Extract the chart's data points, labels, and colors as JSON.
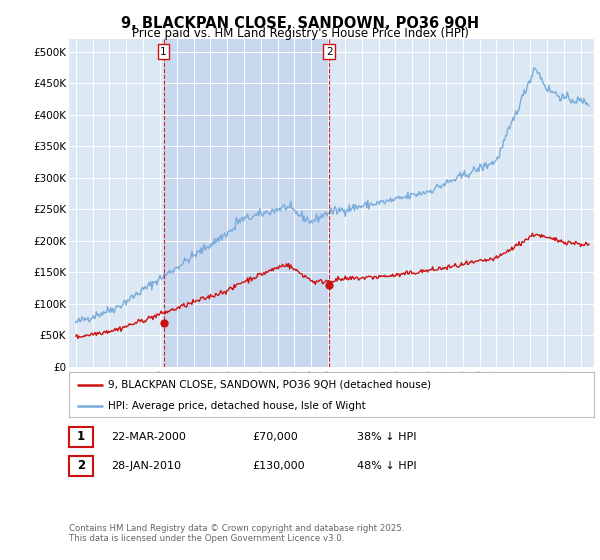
{
  "title": "9, BLACKPAN CLOSE, SANDOWN, PO36 9QH",
  "subtitle": "Price paid vs. HM Land Registry's House Price Index (HPI)",
  "ylim": [
    0,
    520000
  ],
  "yticks": [
    0,
    50000,
    100000,
    150000,
    200000,
    250000,
    300000,
    350000,
    400000,
    450000,
    500000
  ],
  "ytick_labels": [
    "£0",
    "£50K",
    "£100K",
    "£150K",
    "£200K",
    "£250K",
    "£300K",
    "£350K",
    "£400K",
    "£450K",
    "£500K"
  ],
  "hpi_color": "#7aabda",
  "price_color": "#cc1111",
  "sale1_date": 2000.22,
  "sale1_price": 70000,
  "sale2_date": 2010.07,
  "sale2_price": 130000,
  "legend_line1": "9, BLACKPAN CLOSE, SANDOWN, PO36 9QH (detached house)",
  "legend_line2": "HPI: Average price, detached house, Isle of Wight",
  "footer1": "Contains HM Land Registry data © Crown copyright and database right 2025.",
  "footer2": "This data is licensed under the Open Government Licence v3.0.",
  "table_row1": [
    "1",
    "22-MAR-2000",
    "£70,000",
    "38% ↓ HPI"
  ],
  "table_row2": [
    "2",
    "28-JAN-2010",
    "£130,000",
    "48% ↓ HPI"
  ],
  "background_color": "#ffffff",
  "plot_bg_color": "#dce9f5",
  "shade_color": "#c8d8ee",
  "xlim_left": 1994.6,
  "xlim_right": 2025.8
}
